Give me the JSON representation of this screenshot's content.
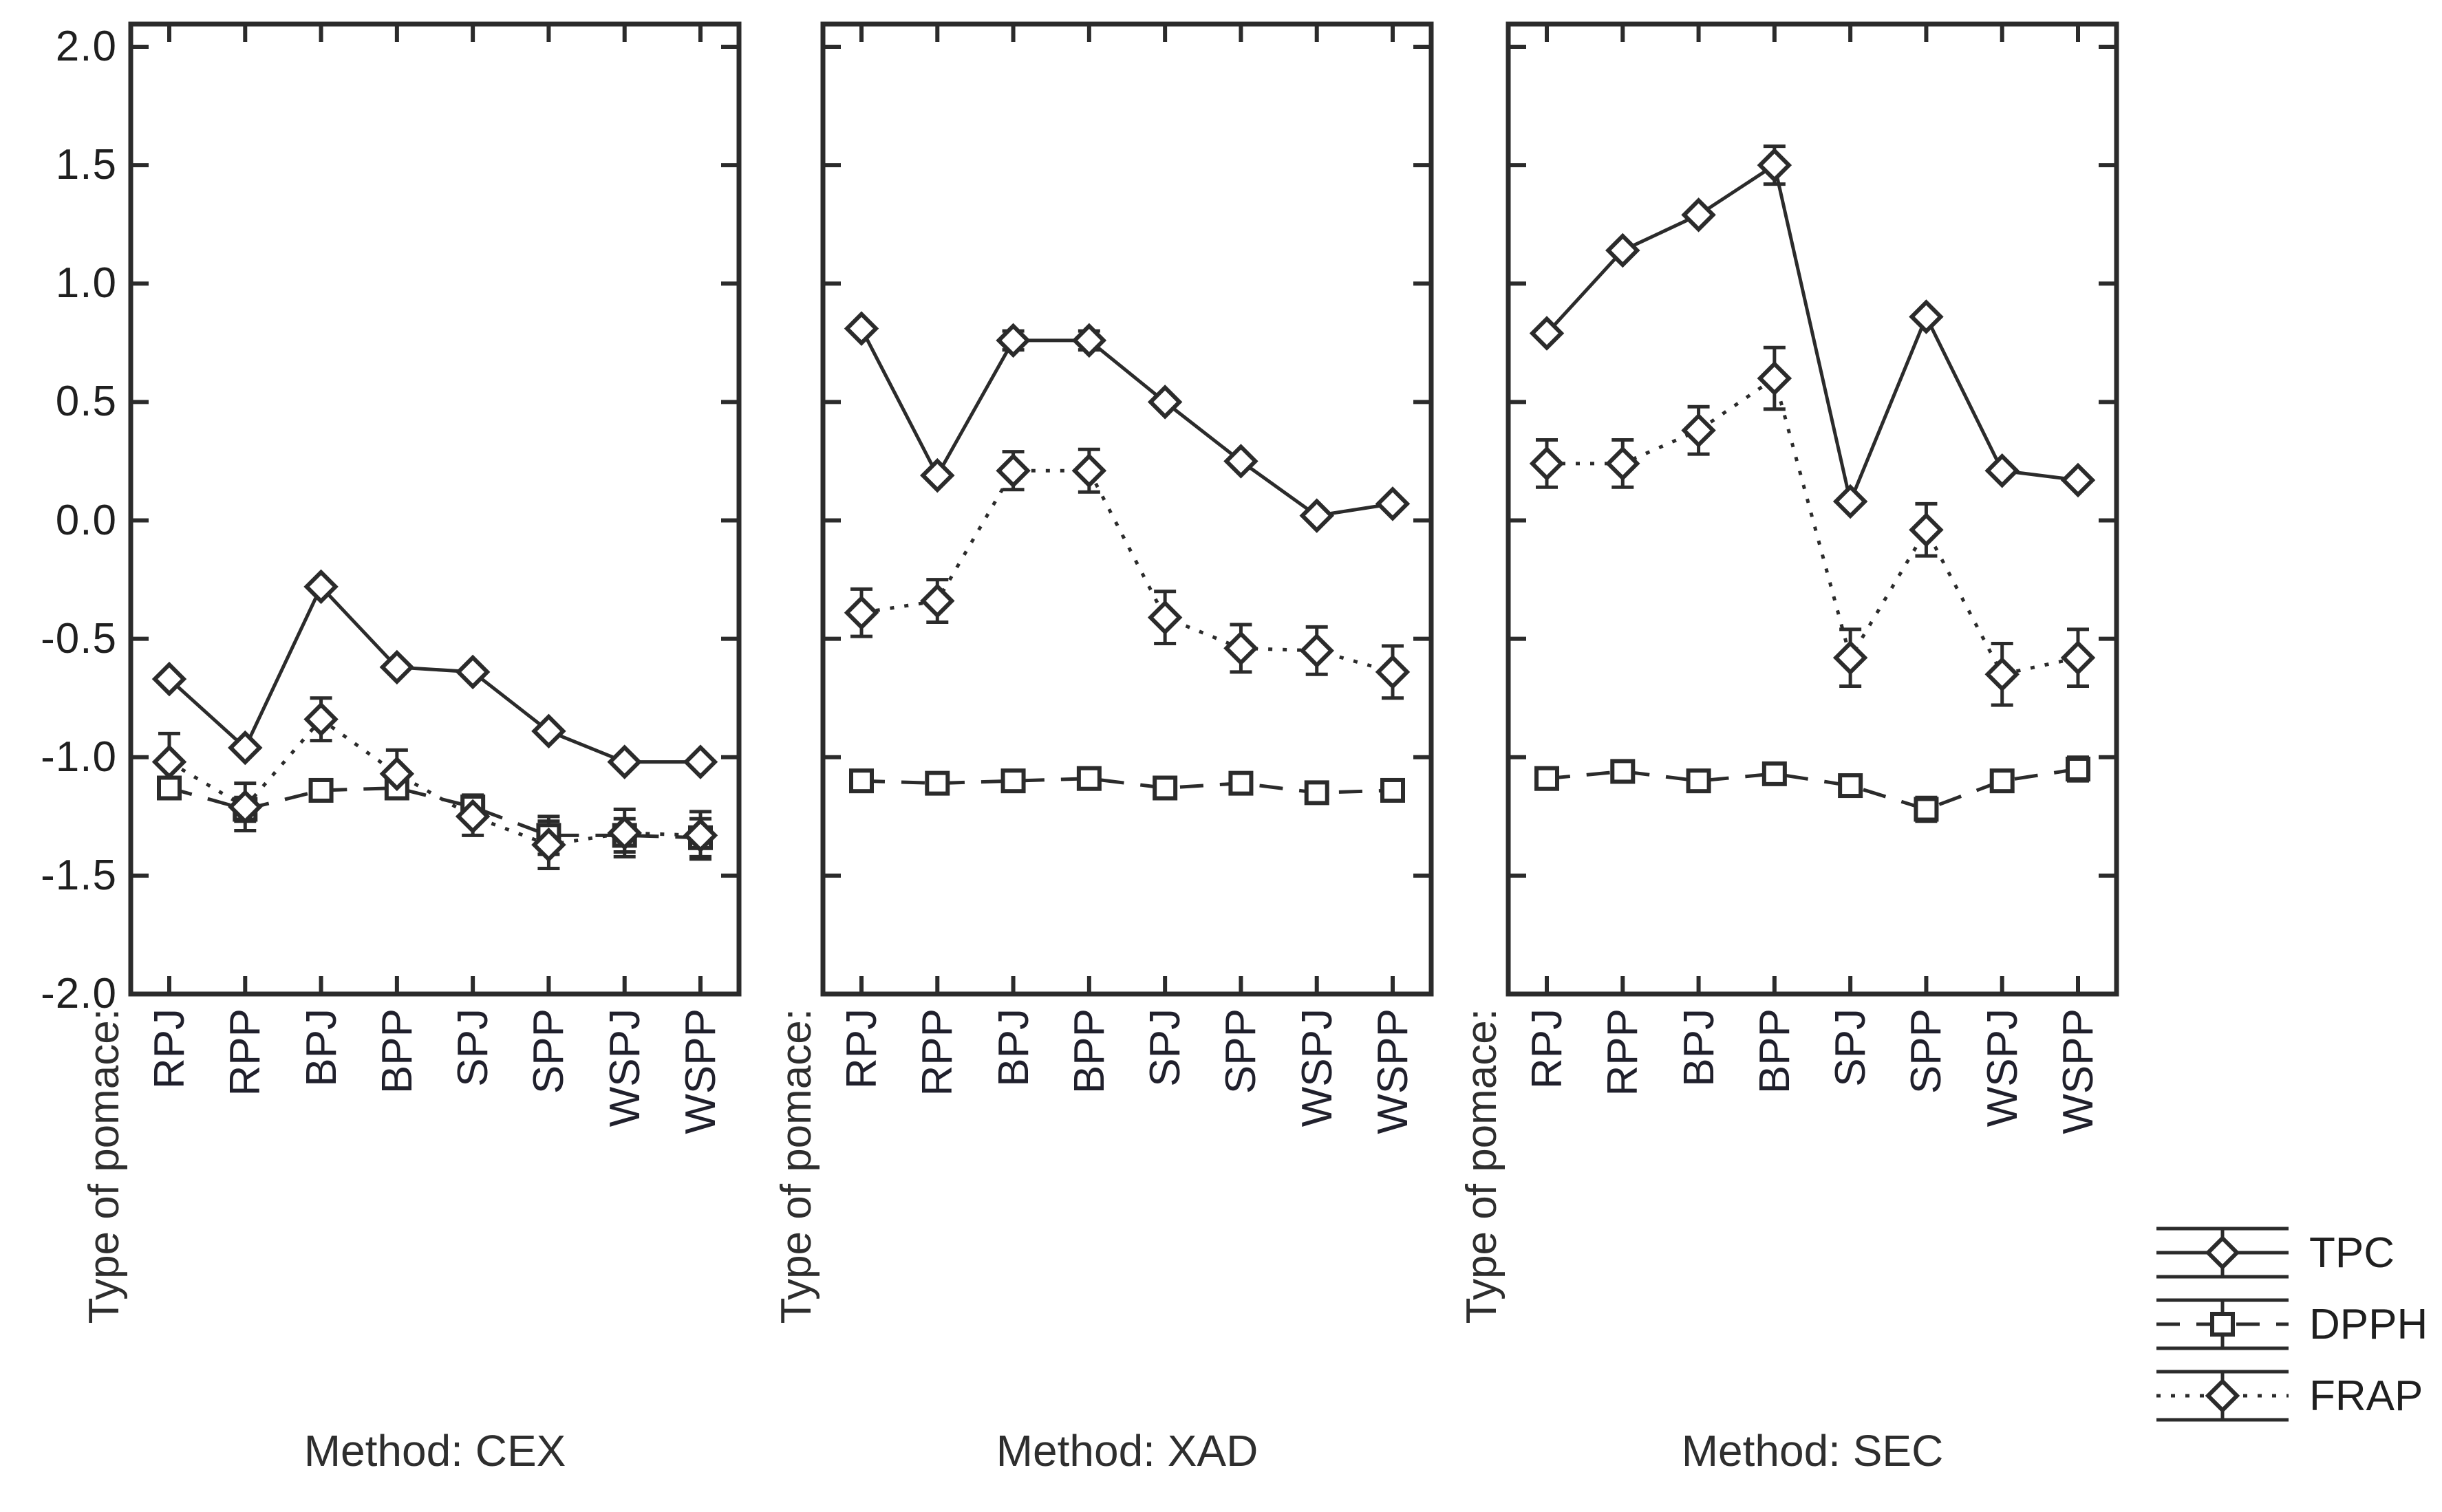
{
  "figure": {
    "background": "#ffffff",
    "ink": "#2b2b2b"
  },
  "chart_data": {
    "type": "line",
    "title": "",
    "x_axis_title": "Type of pomace:",
    "categories": [
      "RPJ",
      "RPP",
      "BPJ",
      "BPP",
      "SPJ",
      "SPP",
      "WSPJ",
      "WSPP"
    ],
    "ylim": [
      -2.0,
      2.0
    ],
    "yticks": [
      2.0,
      1.5,
      1.0,
      0.5,
      0.0,
      -0.5,
      -1.0,
      -1.5,
      -2.0
    ],
    "grid": false,
    "legend_position": "bottom-right",
    "series_styles": [
      {
        "name": "TPC",
        "marker": "diamond",
        "line": "solid"
      },
      {
        "name": "DPPH",
        "marker": "square",
        "line": "dashed"
      },
      {
        "name": "FRAP",
        "marker": "diamond",
        "line": "dotted"
      }
    ],
    "panels": [
      {
        "method_label": "Method: CEX",
        "series": {
          "TPC": {
            "values": [
              -0.67,
              -0.96,
              -0.28,
              -0.62,
              -0.64,
              -0.89,
              -1.02,
              -1.02
            ],
            "err": [
              0,
              0,
              0,
              0,
              0,
              0,
              0,
              0
            ]
          },
          "DPPH": {
            "values": [
              -1.13,
              -1.22,
              -1.14,
              -1.13,
              -1.21,
              -1.33,
              -1.33,
              -1.34
            ],
            "err": [
              0.04,
              0.05,
              0.04,
              0.04,
              0.05,
              0.08,
              0.07,
              0.08
            ]
          },
          "FRAP": {
            "values": [
              -1.02,
              -1.21,
              -0.84,
              -1.07,
              -1.25,
              -1.37,
              -1.32,
              -1.33
            ],
            "err": [
              0.12,
              0.1,
              0.09,
              0.1,
              0.08,
              0.1,
              0.1,
              0.1
            ]
          }
        }
      },
      {
        "method_label": "Method: XAD",
        "series": {
          "TPC": {
            "values": [
              0.81,
              0.19,
              0.76,
              0.76,
              0.5,
              0.25,
              0.02,
              0.07
            ],
            "err": [
              0,
              0,
              0.04,
              0.04,
              0,
              0,
              0,
              0
            ]
          },
          "DPPH": {
            "values": [
              -1.1,
              -1.11,
              -1.1,
              -1.09,
              -1.13,
              -1.11,
              -1.15,
              -1.14
            ],
            "err": [
              0.03,
              0.03,
              0.03,
              0.03,
              0.04,
              0.03,
              0.04,
              0.04
            ]
          },
          "FRAP": {
            "values": [
              -0.39,
              -0.34,
              0.21,
              0.21,
              -0.41,
              -0.54,
              -0.55,
              -0.64
            ],
            "err": [
              0.1,
              0.09,
              0.08,
              0.09,
              0.11,
              0.1,
              0.1,
              0.11
            ]
          }
        }
      },
      {
        "method_label": "Method: SEC",
        "series": {
          "TPC": {
            "values": [
              0.79,
              1.14,
              1.29,
              1.5,
              0.08,
              0.86,
              0.21,
              0.17
            ],
            "err": [
              0,
              0,
              0,
              0.08,
              0,
              0,
              0,
              0
            ]
          },
          "DPPH": {
            "values": [
              -1.09,
              -1.06,
              -1.1,
              -1.07,
              -1.12,
              -1.22,
              -1.1,
              -1.05
            ],
            "err": [
              0.04,
              0.04,
              0.04,
              0.04,
              0.04,
              0.05,
              0.04,
              0.05
            ]
          },
          "FRAP": {
            "values": [
              0.24,
              0.24,
              0.38,
              0.6,
              -0.58,
              -0.04,
              -0.65,
              -0.58
            ],
            "err": [
              0.1,
              0.1,
              0.1,
              0.13,
              0.12,
              0.11,
              0.13,
              0.12
            ]
          }
        }
      }
    ]
  }
}
